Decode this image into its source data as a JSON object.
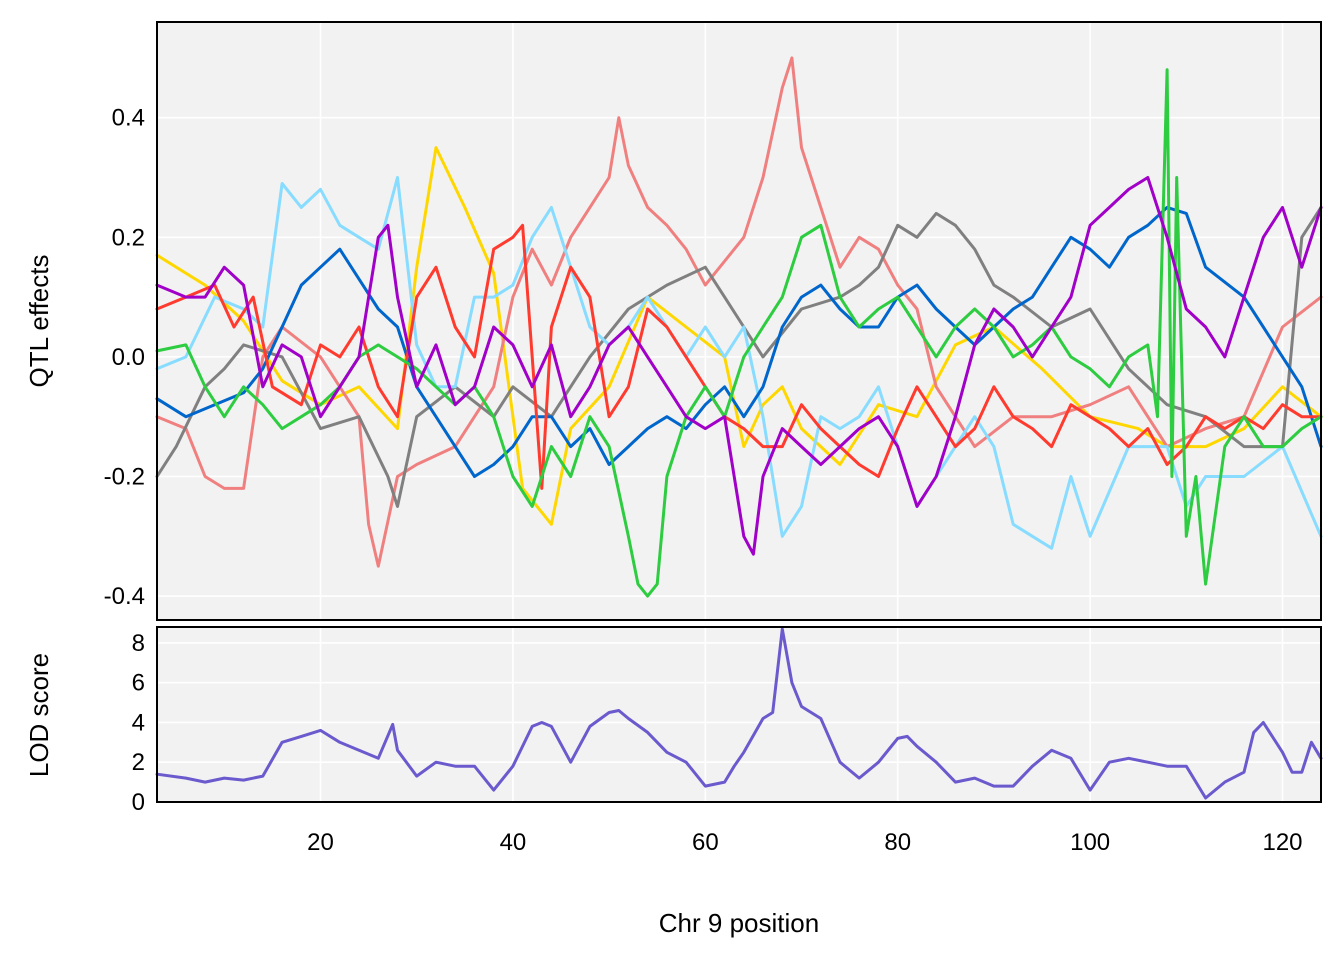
{
  "chart_data": [
    {
      "type": "line",
      "panel": "top",
      "xlabel": "",
      "ylabel": "QTL effects",
      "xlim": [
        3,
        124
      ],
      "ylim": [
        -0.44,
        0.56
      ],
      "xticks": [
        20,
        40,
        60,
        80,
        100,
        120
      ],
      "yticks": [
        -0.4,
        -0.2,
        0.0,
        0.2,
        0.4
      ],
      "ytick_labels": [
        "-0.4",
        "-0.2",
        "0.0",
        "0.2",
        "0.4"
      ],
      "grid": true,
      "legend": "none",
      "series": [
        {
          "color": "#FFD700",
          "x": [
            3,
            8,
            12,
            16,
            20,
            24,
            28,
            30,
            32,
            35,
            38,
            41,
            44,
            46,
            50,
            54,
            58,
            62,
            64,
            66,
            68,
            70,
            74,
            78,
            82,
            86,
            90,
            95,
            100,
            105,
            108,
            112,
            116,
            120,
            124
          ],
          "y": [
            0.17,
            0.12,
            0.06,
            -0.04,
            -0.08,
            -0.05,
            -0.12,
            0.15,
            0.35,
            0.25,
            0.14,
            -0.22,
            -0.28,
            -0.12,
            -0.05,
            0.1,
            0.05,
            0.0,
            -0.15,
            -0.08,
            -0.05,
            -0.12,
            -0.18,
            -0.08,
            -0.1,
            0.02,
            0.05,
            -0.02,
            -0.1,
            -0.12,
            -0.15,
            -0.15,
            -0.12,
            -0.05,
            -0.1
          ]
        },
        {
          "color": "#F08080",
          "x": [
            3,
            6,
            8,
            10,
            12,
            14,
            16,
            20,
            24,
            25,
            26,
            28,
            30,
            34,
            38,
            40,
            42,
            44,
            46,
            48,
            50,
            51,
            52,
            54,
            56,
            58,
            60,
            62,
            64,
            66,
            68,
            69,
            70,
            72,
            74,
            76,
            78,
            80,
            82,
            84,
            88,
            92,
            96,
            100,
            104,
            108,
            112,
            116,
            120,
            124
          ],
          "y": [
            -0.1,
            -0.12,
            -0.2,
            -0.22,
            -0.22,
            0.0,
            0.05,
            0.0,
            -0.1,
            -0.28,
            -0.35,
            -0.2,
            -0.18,
            -0.15,
            -0.05,
            0.1,
            0.18,
            0.12,
            0.2,
            0.25,
            0.3,
            0.4,
            0.32,
            0.25,
            0.22,
            0.18,
            0.12,
            0.16,
            0.2,
            0.3,
            0.45,
            0.5,
            0.35,
            0.25,
            0.15,
            0.2,
            0.18,
            0.12,
            0.08,
            -0.05,
            -0.15,
            -0.1,
            -0.1,
            -0.08,
            -0.05,
            -0.15,
            -0.12,
            -0.1,
            0.05,
            0.1
          ]
        },
        {
          "color": "#808080",
          "x": [
            3,
            5,
            8,
            10,
            12,
            16,
            20,
            24,
            27,
            28,
            30,
            34,
            38,
            40,
            44,
            48,
            52,
            56,
            60,
            62,
            64,
            66,
            70,
            74,
            76,
            78,
            80,
            82,
            84,
            86,
            88,
            90,
            92,
            96,
            100,
            104,
            108,
            112,
            116,
            120,
            122,
            124
          ],
          "y": [
            -0.2,
            -0.15,
            -0.05,
            -0.02,
            0.02,
            0.0,
            -0.12,
            -0.1,
            -0.2,
            -0.25,
            -0.1,
            -0.05,
            -0.1,
            -0.05,
            -0.1,
            0.0,
            0.08,
            0.12,
            0.15,
            0.1,
            0.05,
            0.0,
            0.08,
            0.1,
            0.12,
            0.15,
            0.22,
            0.2,
            0.24,
            0.22,
            0.18,
            0.12,
            0.1,
            0.05,
            0.08,
            -0.02,
            -0.08,
            -0.1,
            -0.15,
            -0.15,
            0.2,
            0.25
          ]
        },
        {
          "color": "#87DCFF",
          "x": [
            3,
            6,
            9,
            12,
            14,
            16,
            18,
            20,
            22,
            24,
            26,
            28,
            30,
            32,
            34,
            36,
            38,
            40,
            42,
            44,
            46,
            48,
            50,
            52,
            54,
            56,
            58,
            60,
            62,
            64,
            66,
            68,
            70,
            72,
            74,
            76,
            78,
            80,
            82,
            84,
            86,
            88,
            90,
            92,
            94,
            96,
            98,
            100,
            104,
            108,
            110,
            112,
            116,
            120,
            124
          ],
          "y": [
            -0.02,
            0.0,
            0.1,
            0.08,
            0.05,
            0.29,
            0.25,
            0.28,
            0.22,
            0.2,
            0.18,
            0.3,
            0.02,
            -0.05,
            -0.05,
            0.1,
            0.1,
            0.12,
            0.2,
            0.25,
            0.15,
            0.05,
            0.02,
            0.05,
            0.1,
            0.05,
            0.0,
            0.05,
            0.0,
            0.05,
            -0.1,
            -0.3,
            -0.25,
            -0.1,
            -0.12,
            -0.1,
            -0.05,
            -0.15,
            -0.25,
            -0.2,
            -0.15,
            -0.1,
            -0.15,
            -0.28,
            -0.3,
            -0.32,
            -0.2,
            -0.3,
            -0.15,
            -0.15,
            -0.25,
            -0.2,
            -0.2,
            -0.15,
            -0.3
          ]
        },
        {
          "color": "#0066CC",
          "x": [
            3,
            6,
            9,
            12,
            14,
            16,
            18,
            20,
            22,
            24,
            26,
            28,
            30,
            32,
            34,
            36,
            38,
            40,
            42,
            44,
            46,
            48,
            50,
            52,
            54,
            56,
            58,
            60,
            62,
            64,
            66,
            68,
            70,
            72,
            74,
            76,
            78,
            80,
            82,
            84,
            86,
            88,
            90,
            92,
            94,
            96,
            98,
            100,
            102,
            104,
            106,
            108,
            110,
            112,
            116,
            118,
            120,
            122,
            124
          ],
          "y": [
            -0.07,
            -0.1,
            -0.08,
            -0.06,
            -0.02,
            0.05,
            0.12,
            0.15,
            0.18,
            0.13,
            0.08,
            0.05,
            -0.05,
            -0.1,
            -0.15,
            -0.2,
            -0.18,
            -0.15,
            -0.1,
            -0.1,
            -0.15,
            -0.12,
            -0.18,
            -0.15,
            -0.12,
            -0.1,
            -0.12,
            -0.08,
            -0.05,
            -0.1,
            -0.05,
            0.05,
            0.1,
            0.12,
            0.08,
            0.05,
            0.05,
            0.1,
            0.12,
            0.08,
            0.05,
            0.02,
            0.05,
            0.08,
            0.1,
            0.15,
            0.2,
            0.18,
            0.15,
            0.2,
            0.22,
            0.25,
            0.24,
            0.15,
            0.1,
            0.05,
            0.0,
            -0.05,
            -0.15
          ]
        },
        {
          "color": "#FF3B2F",
          "x": [
            3,
            6,
            9,
            11,
            13,
            15,
            18,
            20,
            22,
            24,
            26,
            28,
            30,
            32,
            34,
            36,
            38,
            40,
            41,
            42,
            43,
            44,
            46,
            48,
            50,
            52,
            54,
            56,
            58,
            60,
            62,
            64,
            66,
            68,
            70,
            72,
            74,
            76,
            78,
            80,
            82,
            84,
            86,
            88,
            90,
            92,
            94,
            96,
            98,
            100,
            102,
            104,
            106,
            108,
            110,
            112,
            114,
            116,
            118,
            120,
            122,
            124
          ],
          "y": [
            0.08,
            0.1,
            0.12,
            0.05,
            0.1,
            -0.05,
            -0.08,
            0.02,
            0.0,
            0.05,
            -0.05,
            -0.1,
            0.1,
            0.15,
            0.05,
            0.0,
            0.18,
            0.2,
            0.22,
            0.0,
            -0.22,
            0.05,
            0.15,
            0.1,
            -0.1,
            -0.05,
            0.08,
            0.05,
            0.0,
            -0.05,
            -0.1,
            -0.12,
            -0.15,
            -0.15,
            -0.08,
            -0.12,
            -0.15,
            -0.18,
            -0.2,
            -0.12,
            -0.05,
            -0.1,
            -0.15,
            -0.12,
            -0.05,
            -0.1,
            -0.12,
            -0.15,
            -0.08,
            -0.1,
            -0.12,
            -0.15,
            -0.12,
            -0.18,
            -0.15,
            -0.1,
            -0.12,
            -0.1,
            -0.12,
            -0.08,
            -0.1,
            -0.1
          ]
        },
        {
          "color": "#2ECC40",
          "x": [
            3,
            6,
            8,
            10,
            12,
            14,
            16,
            18,
            20,
            22,
            24,
            26,
            28,
            30,
            32,
            34,
            36,
            38,
            40,
            42,
            44,
            46,
            48,
            50,
            52,
            53,
            54,
            55,
            56,
            58,
            60,
            62,
            64,
            66,
            68,
            70,
            72,
            74,
            76,
            78,
            80,
            82,
            84,
            86,
            88,
            90,
            92,
            94,
            96,
            98,
            100,
            102,
            104,
            106,
            107,
            108,
            108.5,
            109,
            110,
            111,
            112,
            114,
            116,
            118,
            120,
            122,
            124
          ],
          "y": [
            0.01,
            0.02,
            -0.05,
            -0.1,
            -0.05,
            -0.08,
            -0.12,
            -0.1,
            -0.08,
            -0.05,
            0.0,
            0.02,
            0.0,
            -0.02,
            -0.05,
            -0.08,
            -0.05,
            -0.1,
            -0.2,
            -0.25,
            -0.15,
            -0.2,
            -0.1,
            -0.15,
            -0.3,
            -0.38,
            -0.4,
            -0.38,
            -0.2,
            -0.1,
            -0.05,
            -0.1,
            0.0,
            0.05,
            0.1,
            0.2,
            0.22,
            0.1,
            0.05,
            0.08,
            0.1,
            0.05,
            0.0,
            0.05,
            0.08,
            0.05,
            0.0,
            0.02,
            0.05,
            0.0,
            -0.02,
            -0.05,
            0.0,
            0.02,
            -0.1,
            0.48,
            -0.2,
            0.3,
            -0.3,
            -0.2,
            -0.38,
            -0.15,
            -0.1,
            -0.15,
            -0.15,
            -0.12,
            -0.1
          ]
        },
        {
          "color": "#A000C8",
          "x": [
            3,
            6,
            8,
            10,
            12,
            14,
            16,
            18,
            20,
            22,
            24,
            26,
            27,
            28,
            30,
            32,
            34,
            36,
            38,
            40,
            42,
            44,
            46,
            48,
            50,
            52,
            54,
            56,
            58,
            60,
            62,
            64,
            65,
            66,
            68,
            70,
            72,
            74,
            76,
            78,
            80,
            82,
            84,
            86,
            88,
            90,
            92,
            94,
            96,
            98,
            100,
            102,
            104,
            106,
            108,
            110,
            112,
            114,
            116,
            118,
            120,
            122,
            124
          ],
          "y": [
            0.12,
            0.1,
            0.1,
            0.15,
            0.12,
            -0.05,
            0.02,
            0.0,
            -0.1,
            -0.05,
            0.0,
            0.2,
            0.22,
            0.1,
            -0.05,
            0.02,
            -0.08,
            -0.05,
            0.05,
            0.02,
            -0.05,
            0.02,
            -0.1,
            -0.05,
            0.02,
            0.05,
            0.0,
            -0.05,
            -0.1,
            -0.12,
            -0.1,
            -0.3,
            -0.33,
            -0.2,
            -0.12,
            -0.15,
            -0.18,
            -0.15,
            -0.12,
            -0.1,
            -0.15,
            -0.25,
            -0.2,
            -0.1,
            0.02,
            0.08,
            0.05,
            0.0,
            0.05,
            0.1,
            0.22,
            0.25,
            0.28,
            0.3,
            0.2,
            0.08,
            0.05,
            0.0,
            0.1,
            0.2,
            0.25,
            0.15,
            0.25
          ]
        }
      ]
    },
    {
      "type": "line",
      "panel": "bottom",
      "xlabel": "Chr 9 position",
      "ylabel": "LOD score",
      "xlim": [
        3,
        124
      ],
      "ylim": [
        0,
        8.8
      ],
      "xticks": [
        20,
        40,
        60,
        80,
        100,
        120
      ],
      "xtick_labels": [
        "20",
        "40",
        "60",
        "80",
        "100",
        "120"
      ],
      "yticks": [
        0,
        2,
        4,
        6,
        8
      ],
      "ytick_labels": [
        "0",
        "2",
        "4",
        "6",
        "8"
      ],
      "grid": true,
      "legend": "none",
      "series": [
        {
          "color": "#6A5ACD",
          "x": [
            3,
            6,
            8,
            10,
            12,
            14,
            16,
            18,
            20,
            22,
            24,
            26,
            27.5,
            28,
            30,
            32,
            34,
            36,
            38,
            40,
            42,
            43,
            44,
            46,
            48,
            50,
            51,
            52,
            54,
            56,
            58,
            60,
            62,
            63,
            64,
            66,
            67,
            68,
            69,
            70,
            72,
            74,
            76,
            78,
            80,
            81,
            82,
            84,
            86,
            88,
            90,
            92,
            94,
            96,
            98,
            100,
            102,
            104,
            106,
            108,
            110,
            112,
            114,
            116,
            117,
            118,
            120,
            121,
            122,
            123,
            124
          ],
          "y": [
            1.4,
            1.2,
            1.0,
            1.2,
            1.1,
            1.3,
            3.0,
            3.3,
            3.6,
            3.0,
            2.6,
            2.2,
            3.9,
            2.6,
            1.3,
            2.0,
            1.8,
            1.8,
            0.6,
            1.8,
            3.8,
            4.0,
            3.8,
            2.0,
            3.8,
            4.5,
            4.6,
            4.2,
            3.5,
            2.5,
            2.0,
            0.8,
            1.0,
            1.8,
            2.5,
            4.2,
            4.5,
            8.7,
            6.0,
            4.8,
            4.2,
            2.0,
            1.2,
            2.0,
            3.2,
            3.3,
            2.8,
            2.0,
            1.0,
            1.2,
            0.8,
            0.8,
            1.8,
            2.6,
            2.2,
            0.6,
            2.0,
            2.2,
            2.0,
            1.8,
            1.8,
            0.2,
            1.0,
            1.5,
            3.5,
            4.0,
            2.5,
            1.5,
            1.5,
            3.0,
            2.2
          ]
        }
      ]
    }
  ]
}
